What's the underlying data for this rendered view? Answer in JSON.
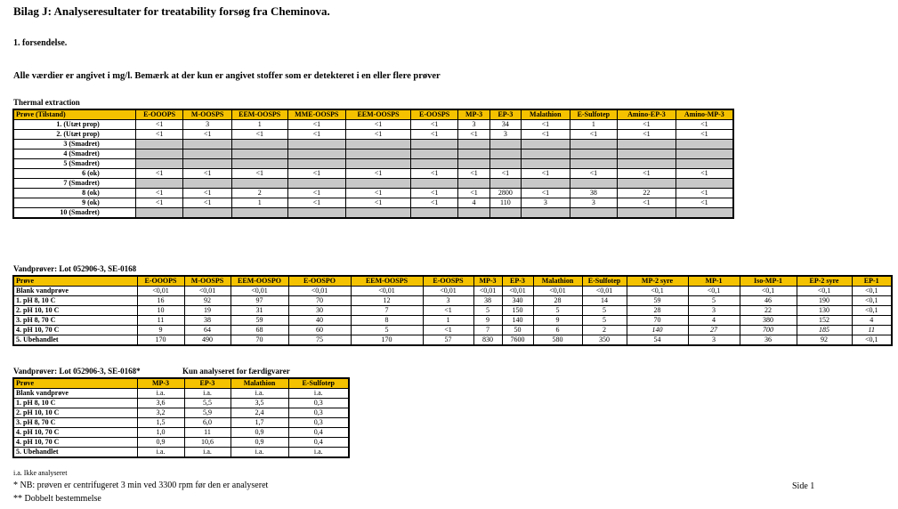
{
  "title": "Bilag J: Analyseresultater for treatability forsøg fra Cheminova.",
  "shipment": "1. forsendelse.",
  "intro": "Alle værdier er angivet i mg/l. Bemærk at der kun er angivet stoffer som er detekteret i en eller flere prøver",
  "thermal": {
    "caption": "Thermal extraction",
    "headers": [
      "Prøve (Tilstand)",
      "E-OOOPS",
      "M-OOSPS",
      "EEM-OOSPS",
      "MME-OOSPS",
      "EEM-OOSPS",
      "E-OOSPS",
      "MP-3",
      "EP-3",
      "Malathion",
      "E-Sulfotep",
      "Amino-EP-3",
      "Amino-MP-3"
    ],
    "rows": [
      {
        "label": "1. (Utæt prop)",
        "cells": [
          "<1",
          "3",
          "1",
          "<1",
          "<1",
          "<1",
          "3",
          "34",
          "<1",
          "1",
          "<1",
          "<1"
        ]
      },
      {
        "label": "2. (Utæt prop)",
        "cells": [
          "<1",
          "<1",
          "<1",
          "<1",
          "<1",
          "<1",
          "<1",
          "3",
          "<1",
          "<1",
          "<1",
          "<1"
        ]
      },
      {
        "label": "3 (Smadret)",
        "gray": true
      },
      {
        "label": "4 (Smadret)",
        "gray": true
      },
      {
        "label": "5 (Smadret)",
        "gray": true
      },
      {
        "label": "6 (ok)",
        "cells": [
          "<1",
          "<1",
          "<1",
          "<1",
          "<1",
          "<1",
          "<1",
          "<1",
          "<1",
          "<1",
          "<1",
          "<1"
        ]
      },
      {
        "label": "7 (Smadret)",
        "gray": true
      },
      {
        "label": "8 (ok)",
        "cells": [
          "<1",
          "<1",
          "2",
          "<1",
          "<1",
          "<1",
          "<1",
          "2800",
          "<1",
          "38",
          "22",
          "<1"
        ]
      },
      {
        "label": "9 (ok)",
        "cells": [
          "<1",
          "<1",
          "1",
          "<1",
          "<1",
          "<1",
          "4",
          "110",
          "3",
          "3",
          "<1",
          "<1"
        ]
      },
      {
        "label": "10 (Smadret)",
        "gray": true
      }
    ]
  },
  "water1": {
    "caption": "Vandprøver: Lot 052906-3, SE-0168",
    "headers": [
      "Prøve",
      "E-OOOPS",
      "M-OOSPS",
      "EEM-OOSPO",
      "E-OOSPO",
      "EEM-OOSPS",
      "E-OOSPS",
      "MP-3",
      "EP-3",
      "Malathion",
      "E-Sulfotep",
      "MP-2 syre",
      "MP-1",
      "Iso-MP-1",
      "EP-2 syre",
      "EP-1"
    ],
    "rows": [
      {
        "label": "Blank vandprøve",
        "cells": [
          "<0,01",
          "<0,01",
          "<0,01",
          "<0,01",
          "<0,01",
          "<0,01",
          "<0,01",
          "<0,01",
          "<0,01",
          "<0,01",
          "<0,1",
          "<0,1",
          "<0,1",
          "<0,1",
          "<0,1"
        ]
      },
      {
        "label": "1. pH 8, 10 C",
        "cells": [
          "16",
          "92",
          "97",
          "70",
          "12",
          "3",
          "38",
          "340",
          "28",
          "14",
          "59",
          "5",
          "46",
          "190",
          "<0,1"
        ]
      },
      {
        "label": "2. pH 10, 10 C",
        "cells": [
          "10",
          "19",
          "31",
          "30",
          "7",
          "<1",
          "5",
          "150",
          "5",
          "5",
          "28",
          "3",
          "22",
          "130",
          "<0,1"
        ]
      },
      {
        "label": "3. pH 8, 70 C",
        "cells": [
          "11",
          "38",
          "59",
          "40",
          "8",
          "1",
          "9",
          "140",
          "9",
          "5",
          "70",
          "4",
          "380",
          "152",
          "4"
        ]
      },
      {
        "label": "4. pH 10, 70 C",
        "italic": true,
        "cells": [
          "9",
          "64",
          "68",
          "60",
          "5",
          "<1",
          "7",
          "50",
          "6",
          "2",
          "140",
          "27",
          "700",
          "185",
          "11"
        ]
      },
      {
        "label": "5. Ubehandlet",
        "cells": [
          "170",
          "490",
          "70",
          "75",
          "170",
          "57",
          "830",
          "7600",
          "580",
          "350",
          "54",
          "3",
          "36",
          "92",
          "<0,1"
        ]
      }
    ]
  },
  "water2": {
    "caption": "Vandprøver: Lot 052906-3, SE-0168*",
    "note": "Kun analyseret for færdigvarer",
    "headers": [
      "Prøve",
      "MP-3",
      "EP-3",
      "Malathion",
      "E-Sulfotep"
    ],
    "rows": [
      {
        "label": "Blank vandprøve",
        "cells": [
          "i.a.",
          "i.a.",
          "i.a.",
          "i.a."
        ]
      },
      {
        "label": "1. pH 8, 10 C",
        "cells": [
          "3,6",
          "5,5",
          "3,5",
          "0,3"
        ]
      },
      {
        "label": "2. pH 10, 10 C",
        "cells": [
          "3,2",
          "5,9",
          "2,4",
          "0,3"
        ]
      },
      {
        "label": "3. pH 8, 70 C",
        "cells": [
          "1,5",
          "6,0",
          "1,7",
          "0,3"
        ]
      },
      {
        "label": "4. pH 10, 70 C",
        "cells": [
          "1,0",
          "11",
          "0,9",
          "0,4"
        ]
      },
      {
        "label": "4. pH 10, 70 C",
        "cells": [
          "0,9",
          "10,6",
          "0,9",
          "0,4"
        ]
      },
      {
        "label": "5. Ubehandlet",
        "cells": [
          "i.a.",
          "i.a.",
          "i.a.",
          "i.a."
        ]
      }
    ]
  },
  "footer": {
    "abbrev": "i.a. Ikke analyseret",
    "note1": "* NB: prøven er centrifugeret 3 min ved 3300 rpm før den er analyseret",
    "note2": "** Dobbelt bestemmelse",
    "page": "Side 1"
  }
}
